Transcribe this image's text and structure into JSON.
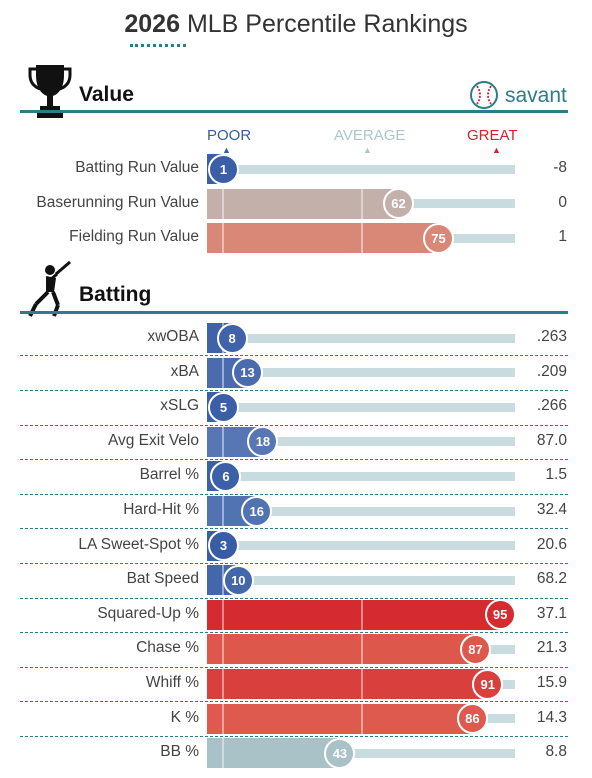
{
  "title": {
    "year": "2026",
    "text": "MLB Percentile Rankings"
  },
  "brand": {
    "name": "savant",
    "icon": "baseball-icon"
  },
  "scale": {
    "poor": "POOR",
    "average": "AVERAGE",
    "great": "GREAT",
    "poor_color": "#355da6",
    "average_color": "#a8c8cc",
    "great_color": "#d3222e"
  },
  "sections": [
    {
      "key": "value",
      "title": "Value",
      "icon": "trophy-icon"
    },
    {
      "key": "batting",
      "title": "Batting",
      "icon": "batter-icon"
    }
  ],
  "chart_data": {
    "type": "bar",
    "orientation": "horizontal",
    "xlim": [
      0,
      100
    ],
    "groups": [
      {
        "section": "Value",
        "rows": [
          {
            "metric": "Batting Run Value",
            "percentile": 1,
            "value": "-8",
            "color": "#3a5ea8"
          },
          {
            "metric": "Baserunning Run Value",
            "percentile": 62,
            "value": "0",
            "color": "#c4b0aa"
          },
          {
            "metric": "Fielding Run Value",
            "percentile": 75,
            "value": "1",
            "color": "#d98878"
          }
        ]
      },
      {
        "section": "Batting",
        "rows": [
          {
            "metric": "xwOBA",
            "percentile": 8,
            "value": ".263",
            "color": "#3f62a9"
          },
          {
            "metric": "xBA",
            "percentile": 13,
            "value": ".209",
            "color": "#4a6bae"
          },
          {
            "metric": "xSLG",
            "percentile": 5,
            "value": ".266",
            "color": "#3a5ea8"
          },
          {
            "metric": "Avg Exit Velo",
            "percentile": 18,
            "value": "87.0",
            "color": "#5677b4"
          },
          {
            "metric": "Barrel %",
            "percentile": 6,
            "value": "1.5",
            "color": "#3c60a8"
          },
          {
            "metric": "Hard-Hit %",
            "percentile": 16,
            "value": "32.4",
            "color": "#5273b2"
          },
          {
            "metric": "LA Sweet-Spot %",
            "percentile": 3,
            "value": "20.6",
            "color": "#385ca6"
          },
          {
            "metric": "Bat Speed",
            "percentile": 10,
            "value": "68.2",
            "color": "#4466ab"
          },
          {
            "metric": "Squared-Up %",
            "percentile": 95,
            "value": "37.1",
            "color": "#d52a30"
          },
          {
            "metric": "Chase %",
            "percentile": 87,
            "value": "21.3",
            "color": "#de574b"
          },
          {
            "metric": "Whiff %",
            "percentile": 91,
            "value": "15.9",
            "color": "#d9403d"
          },
          {
            "metric": "K %",
            "percentile": 86,
            "value": "14.3",
            "color": "#df5a4e"
          },
          {
            "metric": "BB %",
            "percentile": 43,
            "value": "8.8",
            "color": "#a9c2c7"
          }
        ]
      }
    ]
  }
}
